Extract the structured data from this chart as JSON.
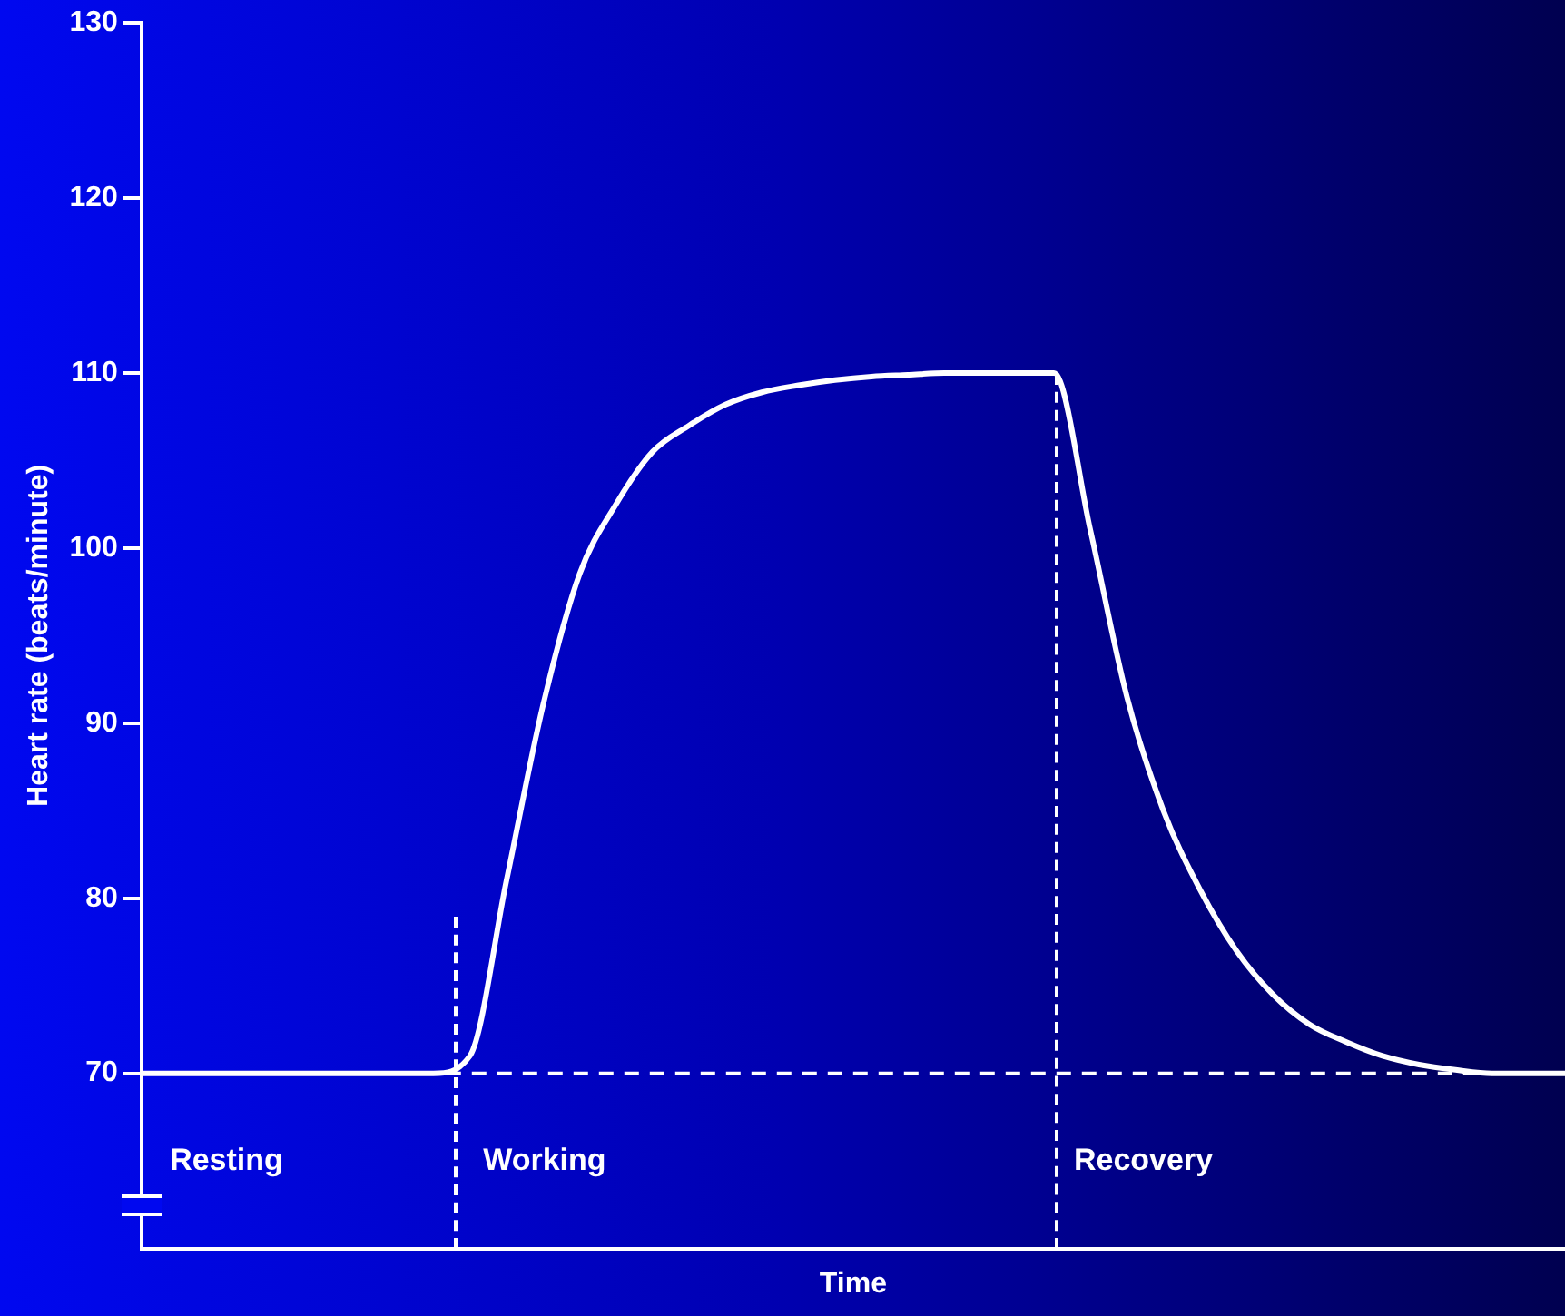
{
  "chart_data": {
    "type": "line",
    "xlabel": "Time",
    "ylabel": "Heart rate (beats/minute)",
    "categories": [
      null,
      null,
      null,
      null,
      null,
      null,
      null,
      null,
      null,
      null,
      null,
      null,
      null,
      null,
      null,
      null,
      null,
      null,
      null,
      null,
      null,
      null,
      null,
      null,
      null,
      null,
      null,
      null,
      null,
      null,
      null,
      null,
      null,
      null,
      null,
      null,
      null,
      null,
      null,
      null
    ],
    "series": [
      {
        "color": "#ffffff",
        "values": [
          70,
          70,
          70,
          70,
          70,
          70,
          70,
          70,
          70,
          71,
          81,
          91,
          98.5,
          102.5,
          105.5,
          107,
          108.2,
          108.9,
          109.3,
          109.6,
          109.8,
          109.9,
          110,
          110,
          110,
          110,
          101,
          91.5,
          85,
          80.5,
          77,
          74.5,
          72.8,
          71.8,
          71,
          70.5,
          70.2,
          70,
          70,
          70
        ]
      }
    ],
    "ylim": [
      60,
      130
    ],
    "yticks": [
      70,
      80,
      90,
      100,
      110,
      120,
      130
    ],
    "grid": false,
    "marker": "none",
    "line_style": "solid",
    "tick_labels": "y",
    "ref_lines": [
      {
        "axis": "y",
        "value": 70,
        "line_style": "dashed",
        "color": "#ffffff"
      }
    ],
    "annotations": [
      "Resting",
      "Working",
      "Recovery"
    ]
  }
}
